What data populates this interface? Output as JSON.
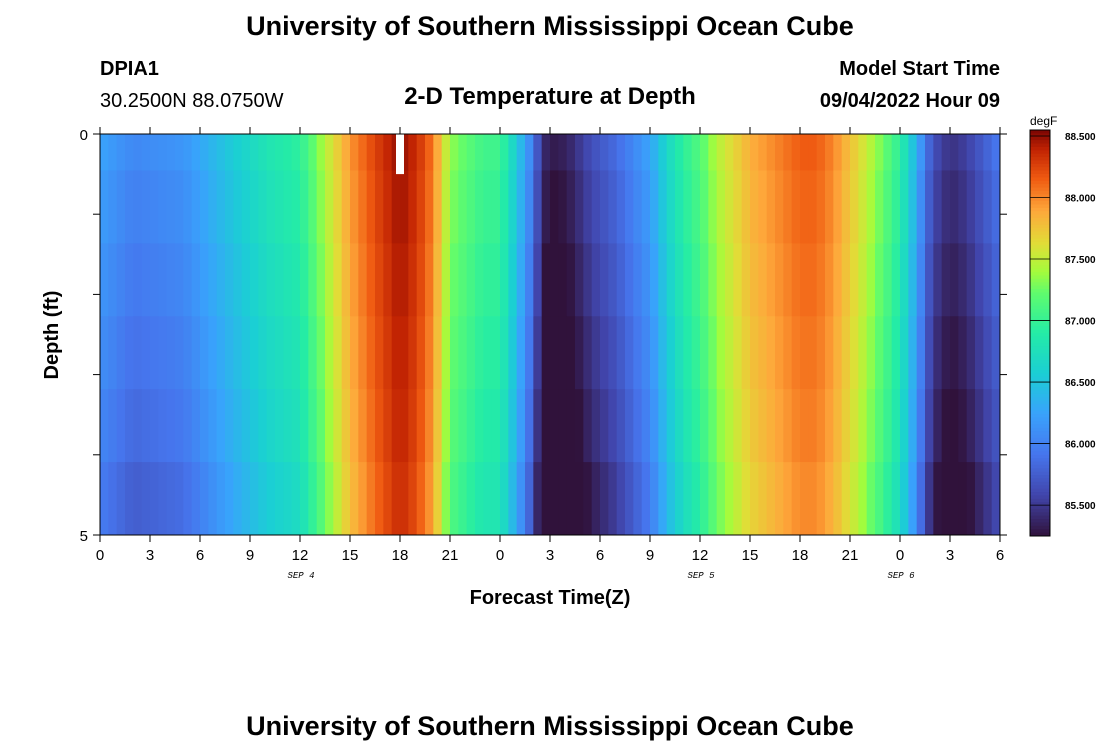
{
  "header": {
    "title": "University of Southern Mississippi Ocean Cube",
    "station": "DPIA1",
    "coords": "30.2500N  88.0750W",
    "plot_title": "2-D Temperature at Depth",
    "start_label": "Model Start Time",
    "start_value": "09/04/2022 Hour 09"
  },
  "footer": {
    "title": "University of Southern Mississippi Ocean Cube"
  },
  "chart_data": {
    "type": "heatmap",
    "xlabel": "Forecast Time(Z)",
    "ylabel": "Depth (ft)",
    "x_tick_labels": [
      "0",
      "3",
      "6",
      "9",
      "12",
      "15",
      "18",
      "21",
      "0",
      "3",
      "6",
      "9",
      "12",
      "15",
      "18",
      "21",
      "0",
      "3",
      "6"
    ],
    "date_labels": [
      "SEP 4",
      "SEP 5",
      "SEP 6"
    ],
    "y_tick_labels": [
      "0",
      "5"
    ],
    "xlim_hours": [
      0,
      54
    ],
    "ylim": [
      0,
      5
    ],
    "colorbar": {
      "unit": "degF",
      "ticks": [
        "88.500",
        "88.000",
        "87.500",
        "87.000",
        "86.500",
        "86.000",
        "85.500"
      ],
      "range": [
        85.2,
        88.5
      ]
    },
    "surface_temperature_profile": {
      "hours": [
        0,
        2,
        5,
        8,
        10,
        12,
        13.5,
        15,
        16.5,
        18,
        19,
        20,
        21,
        23,
        24,
        25,
        26,
        26.5,
        27,
        28,
        29.5,
        31,
        33,
        34,
        35,
        36,
        37,
        38,
        39,
        41,
        42,
        43,
        44,
        45.5,
        47,
        48,
        49,
        49.5,
        50,
        51,
        52,
        53,
        54
      ],
      "values": [
        86.2,
        86.0,
        86.1,
        86.5,
        86.75,
        86.9,
        87.4,
        87.9,
        88.2,
        88.45,
        88.3,
        88.0,
        87.3,
        87.0,
        87.0,
        86.5,
        85.9,
        85.4,
        85.25,
        85.3,
        85.6,
        85.8,
        86.2,
        86.6,
        86.9,
        87.1,
        87.4,
        87.6,
        87.8,
        88.0,
        88.1,
        88.1,
        87.95,
        87.6,
        87.2,
        86.9,
        86.3,
        85.9,
        85.6,
        85.4,
        85.5,
        85.7,
        85.9
      ]
    },
    "depth_cooling_degF_per_level": [
      0,
      0.04,
      0.08,
      0.12,
      0.16,
      0.22
    ],
    "missing_marker": {
      "hour": 18,
      "depth_range": [
        0,
        0.5
      ]
    }
  }
}
